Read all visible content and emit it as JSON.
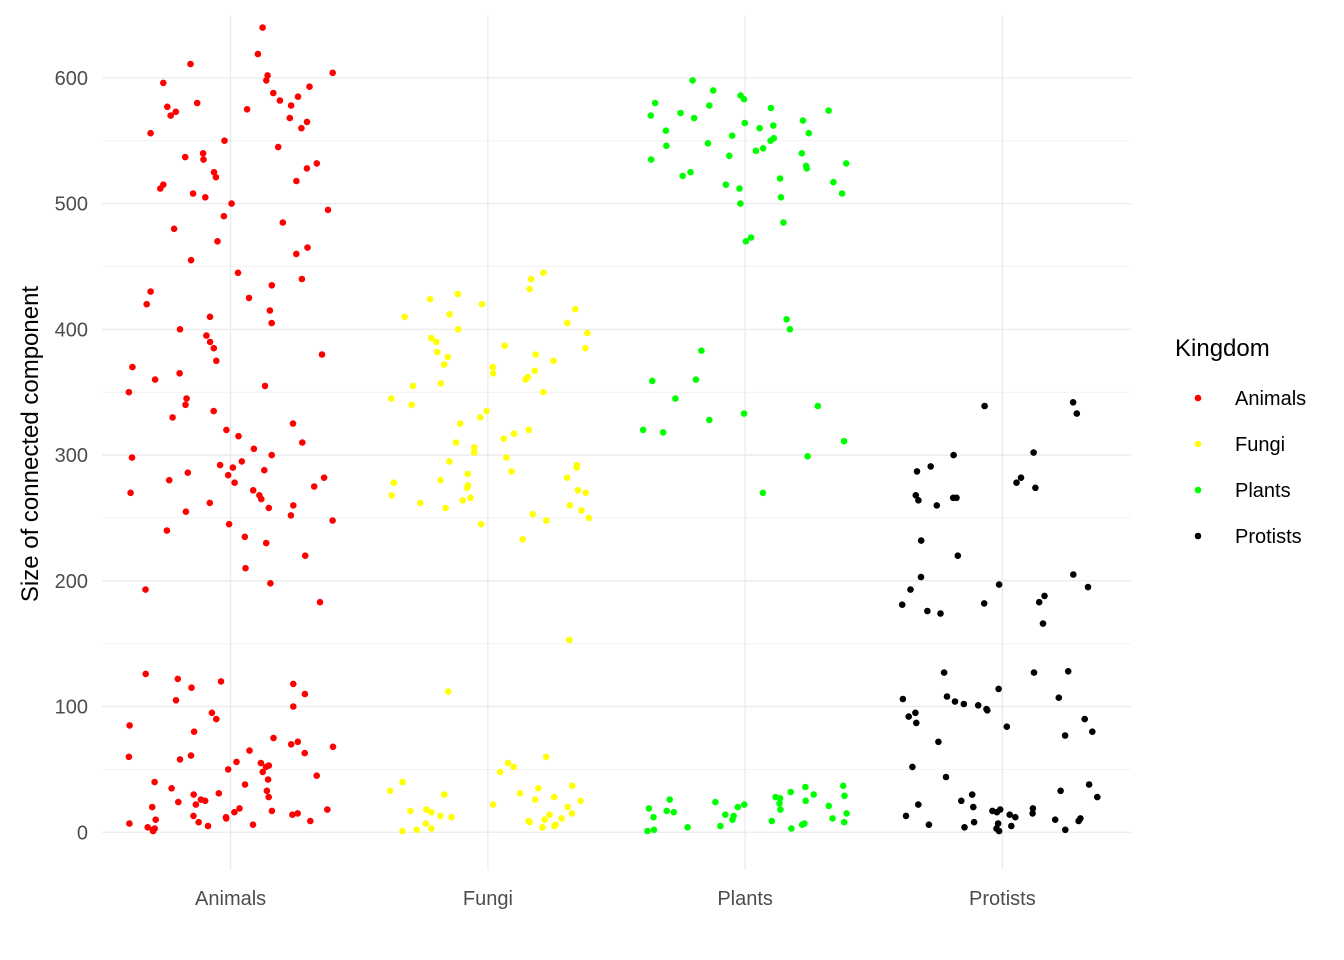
{
  "chart_data": {
    "type": "scatter",
    "title": "",
    "xlabel": "",
    "ylabel": "Size of connected component",
    "categories": [
      "Animals",
      "Fungi",
      "Plants",
      "Protists"
    ],
    "ylim": [
      -30,
      650
    ],
    "y_ticks": [
      0,
      100,
      200,
      300,
      400,
      500,
      600
    ],
    "y_tick_labels": [
      "0",
      "100",
      "200",
      "300",
      "400",
      "500",
      "600"
    ],
    "grid": true,
    "legend": {
      "title": "Kingdom",
      "position": "right",
      "entries": [
        {
          "label": "Animals",
          "color": "#ff0000"
        },
        {
          "label": "Fungi",
          "color": "#ffff00"
        },
        {
          "label": "Plants",
          "color": "#00ff00"
        },
        {
          "label": "Protists",
          "color": "#000000"
        }
      ]
    },
    "series": [
      {
        "color": "#ff0000",
        "values": [
          640,
          611,
          619,
          604,
          602,
          598,
          596,
          593,
          588,
          585,
          582,
          580,
          578,
          577,
          575,
          573,
          570,
          568,
          565,
          560,
          556,
          550,
          545,
          540,
          537,
          535,
          532,
          528,
          525,
          521,
          518,
          515,
          512,
          508,
          505,
          500,
          495,
          490,
          485,
          480,
          470,
          465,
          460,
          455,
          445,
          440,
          435,
          430,
          425,
          420,
          415,
          410,
          405,
          400,
          395,
          390,
          385,
          380,
          375,
          370,
          365,
          360,
          355,
          350,
          345,
          340,
          335,
          330,
          325,
          320,
          315,
          310,
          305,
          300,
          298,
          295,
          292,
          290,
          288,
          286,
          284,
          282,
          280,
          278,
          275,
          272,
          270,
          268,
          265,
          262,
          260,
          258,
          255,
          252,
          248,
          245,
          240,
          235,
          230,
          220,
          210,
          198,
          193,
          183,
          126,
          122,
          120,
          118,
          115,
          110,
          105,
          100,
          95,
          90,
          85,
          80,
          75,
          72,
          70,
          68,
          65,
          63,
          61,
          60,
          58,
          56,
          55,
          53,
          52,
          50,
          48,
          45,
          42,
          40,
          38,
          35,
          33,
          31,
          30,
          28,
          26,
          25,
          24,
          22,
          20,
          19,
          18,
          17,
          16,
          15,
          14,
          13,
          12,
          11,
          10,
          9,
          8,
          7,
          6,
          5,
          4,
          3,
          2,
          1
        ]
      },
      {
        "color": "#ffff00",
        "values": [
          445,
          440,
          432,
          428,
          424,
          420,
          416,
          412,
          410,
          405,
          400,
          397,
          393,
          390,
          387,
          385,
          382,
          380,
          378,
          375,
          372,
          370,
          367,
          365,
          362,
          360,
          357,
          355,
          350,
          345,
          340,
          335,
          330,
          325,
          320,
          317,
          313,
          310,
          306,
          302,
          298,
          295,
          292,
          290,
          287,
          285,
          282,
          280,
          278,
          276,
          274,
          272,
          270,
          268,
          266,
          264,
          262,
          260,
          258,
          256,
          253,
          250,
          248,
          245,
          233,
          153,
          112,
          60,
          55,
          52,
          48,
          40,
          37,
          35,
          33,
          31,
          30,
          28,
          26,
          25,
          22,
          20,
          18,
          17,
          16,
          15,
          14,
          13,
          12,
          11,
          10,
          9,
          8,
          7,
          6,
          5,
          4,
          3,
          2,
          1
        ]
      },
      {
        "color": "#00ff00",
        "values": [
          598,
          590,
          586,
          583,
          580,
          578,
          576,
          574,
          572,
          570,
          568,
          566,
          564,
          562,
          560,
          558,
          556,
          554,
          552,
          550,
          548,
          546,
          544,
          542,
          540,
          538,
          535,
          532,
          530,
          528,
          525,
          522,
          520,
          517,
          515,
          512,
          508,
          505,
          500,
          485,
          473,
          470,
          408,
          400,
          383,
          360,
          359,
          345,
          339,
          333,
          328,
          320,
          318,
          311,
          299,
          270,
          37,
          36,
          32,
          30,
          29,
          28,
          27,
          26,
          25,
          24,
          23,
          22,
          21,
          20,
          19,
          18,
          17,
          16,
          15,
          14,
          13,
          12,
          11,
          10,
          9,
          8,
          7,
          6,
          5,
          4,
          3,
          2,
          1
        ]
      },
      {
        "color": "#000000",
        "values": [
          342,
          339,
          333,
          302,
          300,
          291,
          287,
          282,
          278,
          274,
          268,
          266,
          266,
          264,
          260,
          232,
          220,
          205,
          203,
          197,
          195,
          193,
          188,
          183,
          182,
          181,
          176,
          174,
          166,
          128,
          127,
          127,
          114,
          108,
          107,
          106,
          104,
          102,
          101,
          98,
          97,
          95,
          92,
          90,
          87,
          84,
          80,
          77,
          72,
          52,
          44,
          38,
          33,
          30,
          28,
          25,
          22,
          20,
          19,
          18,
          17,
          16,
          15,
          14,
          13,
          12,
          11,
          10,
          9,
          8,
          7,
          6,
          5,
          4,
          3,
          2,
          1
        ]
      }
    ]
  }
}
